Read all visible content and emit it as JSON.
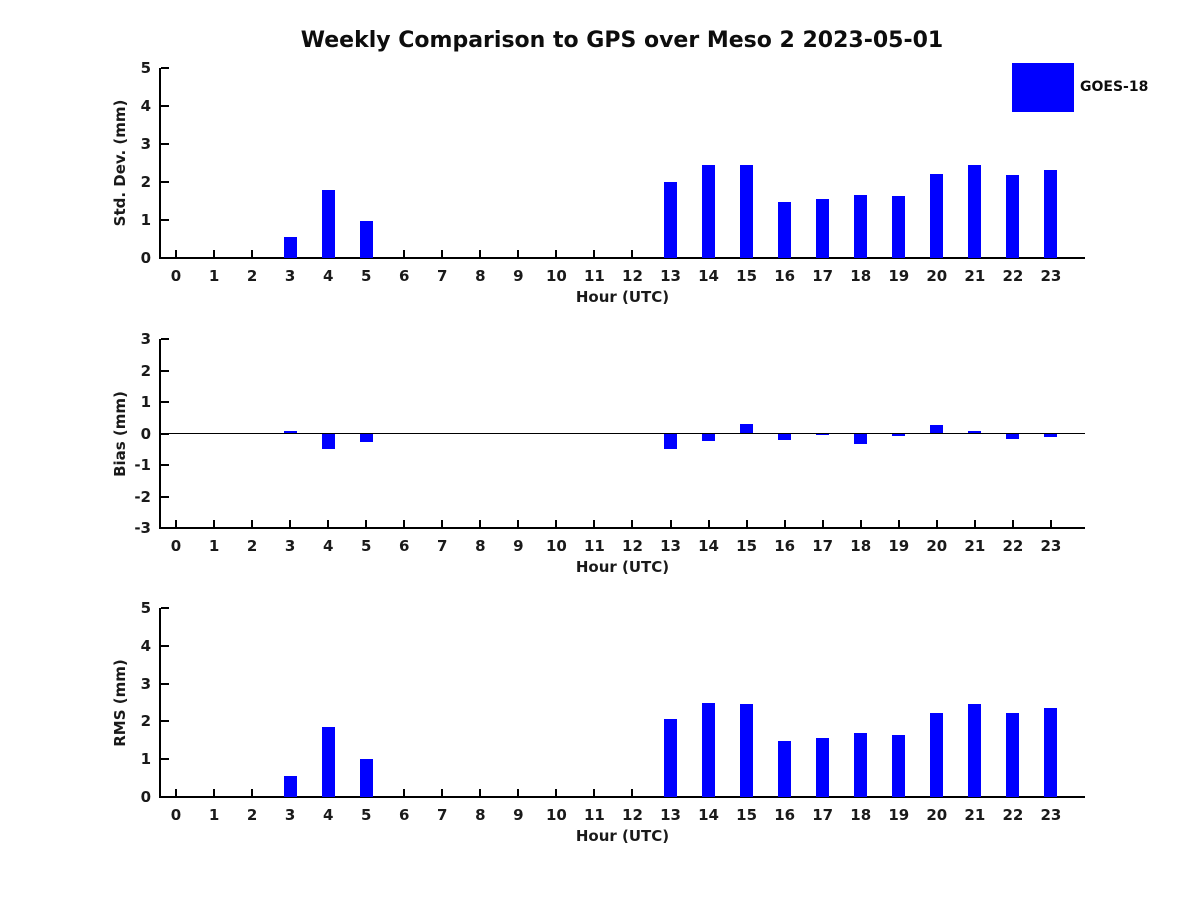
{
  "title": "Weekly Comparison to GPS over Meso 2 2023-05-01",
  "legend": {
    "position": "top-right",
    "items": [
      {
        "label": "GOES-18",
        "color": "#0000FF"
      }
    ]
  },
  "colors": {
    "bar": "#0000FF",
    "axis": "#000000",
    "text": "#1a1a1a",
    "background": "#FFFFFF"
  },
  "chart_data": [
    {
      "type": "bar",
      "title": "",
      "xlabel": "Hour (UTC)",
      "ylabel": "Std. Dev. (mm)",
      "ylim": [
        0,
        5
      ],
      "yticks": [
        0,
        1,
        2,
        3,
        4,
        5
      ],
      "grid": false,
      "zero_line": false,
      "categories": [
        0,
        1,
        2,
        3,
        4,
        5,
        6,
        7,
        8,
        9,
        10,
        11,
        12,
        13,
        14,
        15,
        16,
        17,
        18,
        19,
        20,
        21,
        22,
        23
      ],
      "series": [
        {
          "name": "GOES-18",
          "values": [
            null,
            null,
            null,
            0.55,
            1.78,
            0.98,
            null,
            null,
            null,
            null,
            null,
            null,
            null,
            2.0,
            2.46,
            2.44,
            1.47,
            1.55,
            1.66,
            1.63,
            2.21,
            2.45,
            2.19,
            2.32
          ]
        }
      ]
    },
    {
      "type": "bar",
      "title": "",
      "xlabel": "Hour (UTC)",
      "ylabel": "Bias (mm)",
      "ylim": [
        -3,
        3
      ],
      "yticks": [
        -3,
        -2,
        -1,
        0,
        1,
        2,
        3
      ],
      "grid": false,
      "zero_line": true,
      "categories": [
        0,
        1,
        2,
        3,
        4,
        5,
        6,
        7,
        8,
        9,
        10,
        11,
        12,
        13,
        14,
        15,
        16,
        17,
        18,
        19,
        20,
        21,
        22,
        23
      ],
      "series": [
        {
          "name": "GOES-18",
          "values": [
            null,
            null,
            null,
            0.08,
            -0.48,
            -0.26,
            null,
            null,
            null,
            null,
            null,
            null,
            null,
            -0.48,
            -0.23,
            0.3,
            -0.21,
            -0.03,
            -0.34,
            -0.09,
            0.28,
            0.07,
            -0.16,
            -0.11
          ]
        }
      ]
    },
    {
      "type": "bar",
      "title": "",
      "xlabel": "Hour (UTC)",
      "ylabel": "RMS (mm)",
      "ylim": [
        0,
        5
      ],
      "yticks": [
        0,
        1,
        2,
        3,
        4,
        5
      ],
      "grid": false,
      "zero_line": false,
      "categories": [
        0,
        1,
        2,
        3,
        4,
        5,
        6,
        7,
        8,
        9,
        10,
        11,
        12,
        13,
        14,
        15,
        16,
        17,
        18,
        19,
        20,
        21,
        22,
        23
      ],
      "series": [
        {
          "name": "GOES-18",
          "values": [
            null,
            null,
            null,
            0.56,
            1.85,
            1.01,
            null,
            null,
            null,
            null,
            null,
            null,
            null,
            2.06,
            2.48,
            2.45,
            1.49,
            1.55,
            1.7,
            1.63,
            2.23,
            2.46,
            2.21,
            2.35
          ]
        }
      ]
    }
  ]
}
